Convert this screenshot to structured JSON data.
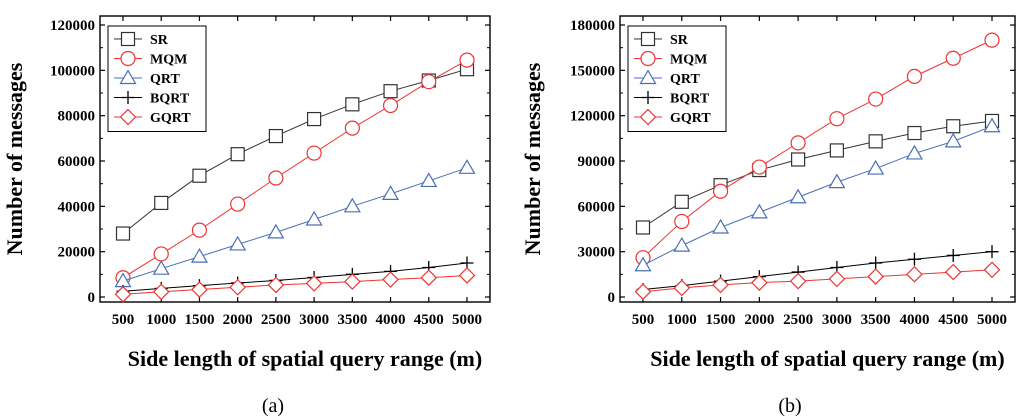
{
  "chart_data": [
    {
      "type": "line",
      "caption": "(a)",
      "xlabel": "Side length of spatial query range (m)",
      "ylabel": "Number of messages",
      "x": [
        500,
        1000,
        1500,
        2000,
        2500,
        3000,
        3500,
        4000,
        4500,
        5000
      ],
      "xticks": [
        "500",
        "1000",
        "1500",
        "2000",
        "2500",
        "3000",
        "3500",
        "4000",
        "4500",
        "5000"
      ],
      "ylim": [
        0,
        120000
      ],
      "yticks": [
        0,
        20000,
        40000,
        60000,
        80000,
        100000,
        120000
      ],
      "ytick_labels": [
        "0",
        "20000",
        "40000",
        "60000",
        "80000",
        "100000",
        "120000"
      ],
      "legend_position": "top-left",
      "series": [
        {
          "name": "SR",
          "color": "#333333",
          "marker": "square",
          "values": [
            28000,
            41500,
            53500,
            63000,
            71000,
            78500,
            85000,
            90800,
            95500,
            100500
          ]
        },
        {
          "name": "MQM",
          "color": "#ee3333",
          "marker": "circle",
          "values": [
            8500,
            19000,
            29500,
            41000,
            52500,
            63500,
            74500,
            84500,
            95000,
            104500
          ]
        },
        {
          "name": "QRT",
          "color": "#4a6fb5",
          "marker": "triangle",
          "values": [
            7000,
            12500,
            17800,
            23200,
            28500,
            34200,
            40000,
            45500,
            51200,
            57000
          ]
        },
        {
          "name": "BQRT",
          "color": "#000000",
          "marker": "plus",
          "values": [
            2500,
            3800,
            5000,
            6200,
            7300,
            8600,
            10000,
            11300,
            13000,
            15000
          ]
        },
        {
          "name": "GQRT",
          "color": "#ee3333",
          "marker": "diamond",
          "values": [
            1200,
            2300,
            3300,
            4300,
            5300,
            6000,
            6800,
            7700,
            8500,
            9500
          ]
        }
      ]
    },
    {
      "type": "line",
      "caption": "(b)",
      "xlabel": "Side length of spatial query range (m)",
      "ylabel": "Number of messages",
      "x": [
        500,
        1000,
        1500,
        2000,
        2500,
        3000,
        3500,
        4000,
        4500,
        5000
      ],
      "xticks": [
        "500",
        "1000",
        "1500",
        "2000",
        "2500",
        "3000",
        "3500",
        "4000",
        "4500",
        "5000"
      ],
      "ylim": [
        0,
        180000
      ],
      "yticks": [
        0,
        30000,
        60000,
        90000,
        120000,
        150000,
        180000
      ],
      "ytick_labels": [
        "0",
        "30000",
        "60000",
        "90000",
        "120000",
        "150000",
        "180000"
      ],
      "legend_position": "top-left",
      "series": [
        {
          "name": "SR",
          "color": "#333333",
          "marker": "square",
          "values": [
            46000,
            63000,
            74000,
            84000,
            91000,
            97000,
            103000,
            108500,
            113000,
            116500
          ]
        },
        {
          "name": "MQM",
          "color": "#ee3333",
          "marker": "circle",
          "values": [
            26000,
            50000,
            70000,
            86000,
            102000,
            118000,
            131000,
            146000,
            158000,
            170000
          ]
        },
        {
          "name": "QRT",
          "color": "#4a6fb5",
          "marker": "triangle",
          "values": [
            21000,
            34000,
            46000,
            56000,
            66000,
            76000,
            85000,
            95000,
            103000,
            113000
          ]
        },
        {
          "name": "BQRT",
          "color": "#000000",
          "marker": "plus",
          "values": [
            5000,
            7500,
            10500,
            13500,
            16500,
            19500,
            22500,
            25000,
            27500,
            30000
          ]
        },
        {
          "name": "GQRT",
          "color": "#ee3333",
          "marker": "diamond",
          "values": [
            3500,
            6000,
            8000,
            9500,
            10500,
            12000,
            13500,
            15000,
            16500,
            18000
          ]
        }
      ]
    }
  ]
}
